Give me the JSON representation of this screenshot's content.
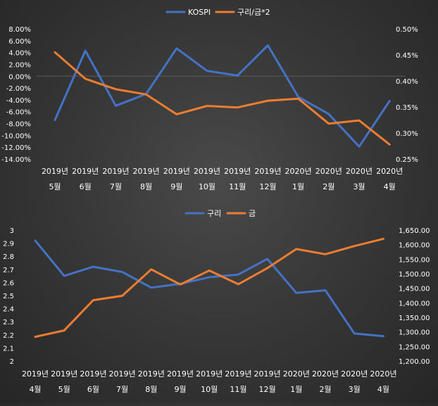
{
  "colors": {
    "blue": "#4472C4",
    "orange": "#ED7D31",
    "text": "#FFFFFF",
    "grid": "#5A5A5A"
  },
  "chart_data": [
    {
      "type": "line",
      "title": "",
      "legend": {
        "position": "top",
        "entries": [
          "KOSPI",
          "구리/금*2"
        ]
      },
      "categories": [
        [
          "2019년",
          "5월"
        ],
        [
          "2019년",
          "6월"
        ],
        [
          "2019년",
          "7월"
        ],
        [
          "2019년",
          "8월"
        ],
        [
          "2019년",
          "9월"
        ],
        [
          "2019년",
          "10월"
        ],
        [
          "2019년",
          "11월"
        ],
        [
          "2019년",
          "12월"
        ],
        [
          "2020년",
          "1월"
        ],
        [
          "2020년",
          "2월"
        ],
        [
          "2020년",
          "3월"
        ],
        [
          "2020년",
          "4월"
        ]
      ],
      "y_left": {
        "min": -14,
        "max": 8,
        "step": 2,
        "tick_labels": [
          "8.00%",
          "6.00%",
          "4.00%",
          "2.00%",
          "0.00%",
          "-2.00%",
          "-4.00%",
          "-6.00%",
          "-8.00%",
          "-10.00%",
          "-12.00%",
          "-14.00%"
        ]
      },
      "y_right": {
        "min": 0.25,
        "max": 0.5,
        "step": 0.05,
        "tick_labels": [
          "0.50%",
          "0.45%",
          "0.40%",
          "0.35%",
          "0.30%",
          "0.25%"
        ]
      },
      "series": [
        {
          "name": "KOSPI",
          "color": "#4472C4",
          "axis": "left",
          "values": [
            -7.4,
            4.3,
            -5.0,
            -3.0,
            4.7,
            0.9,
            0.1,
            5.2,
            -3.5,
            -6.4,
            -11.9,
            -4.2
          ]
        },
        {
          "name": "구리/금*2",
          "color": "#ED7D31",
          "axis": "right",
          "values": [
            0.455,
            0.404,
            0.384,
            0.374,
            0.336,
            0.352,
            0.349,
            0.362,
            0.366,
            0.318,
            0.324,
            0.278
          ]
        }
      ]
    },
    {
      "type": "line",
      "title": "",
      "legend": {
        "position": "top",
        "entries": [
          "구리",
          "금"
        ]
      },
      "categories": [
        [
          "2019년",
          "4월"
        ],
        [
          "2019년",
          "5월"
        ],
        [
          "2019년",
          "6월"
        ],
        [
          "2019년",
          "7월"
        ],
        [
          "2019년",
          "8월"
        ],
        [
          "2019년",
          "9월"
        ],
        [
          "2019년",
          "10월"
        ],
        [
          "2019년",
          "11월"
        ],
        [
          "2019년",
          "12월"
        ],
        [
          "2020년",
          "1월"
        ],
        [
          "2020년",
          "2월"
        ],
        [
          "2020년",
          "3월"
        ],
        [
          "2020년",
          "4월"
        ]
      ],
      "y_left": {
        "min": 2,
        "max": 3,
        "step": 0.1,
        "tick_labels": [
          "3",
          "2.9",
          "2.8",
          "2.7",
          "2.6",
          "2.5",
          "2.4",
          "2.3",
          "2.2",
          "2.1",
          "2"
        ]
      },
      "y_right": {
        "min": 1200,
        "max": 1650,
        "step": 50,
        "tick_labels": [
          "1,650.00",
          "1,600.00",
          "1,550.00",
          "1,500.00",
          "1,450.00",
          "1,400.00",
          "1,350.00",
          "1,300.00",
          "1,250.00",
          "1,200.00"
        ]
      },
      "series": [
        {
          "name": "구리",
          "color": "#4472C4",
          "axis": "left",
          "values": [
            2.92,
            2.65,
            2.72,
            2.68,
            2.56,
            2.59,
            2.64,
            2.66,
            2.78,
            2.52,
            2.54,
            2.21,
            2.19
          ]
        },
        {
          "name": "금",
          "color": "#ED7D31",
          "axis": "right",
          "values": [
            1283,
            1305,
            1409,
            1424,
            1515,
            1463,
            1511,
            1464,
            1519,
            1585,
            1567,
            1595,
            1620
          ]
        }
      ]
    }
  ]
}
